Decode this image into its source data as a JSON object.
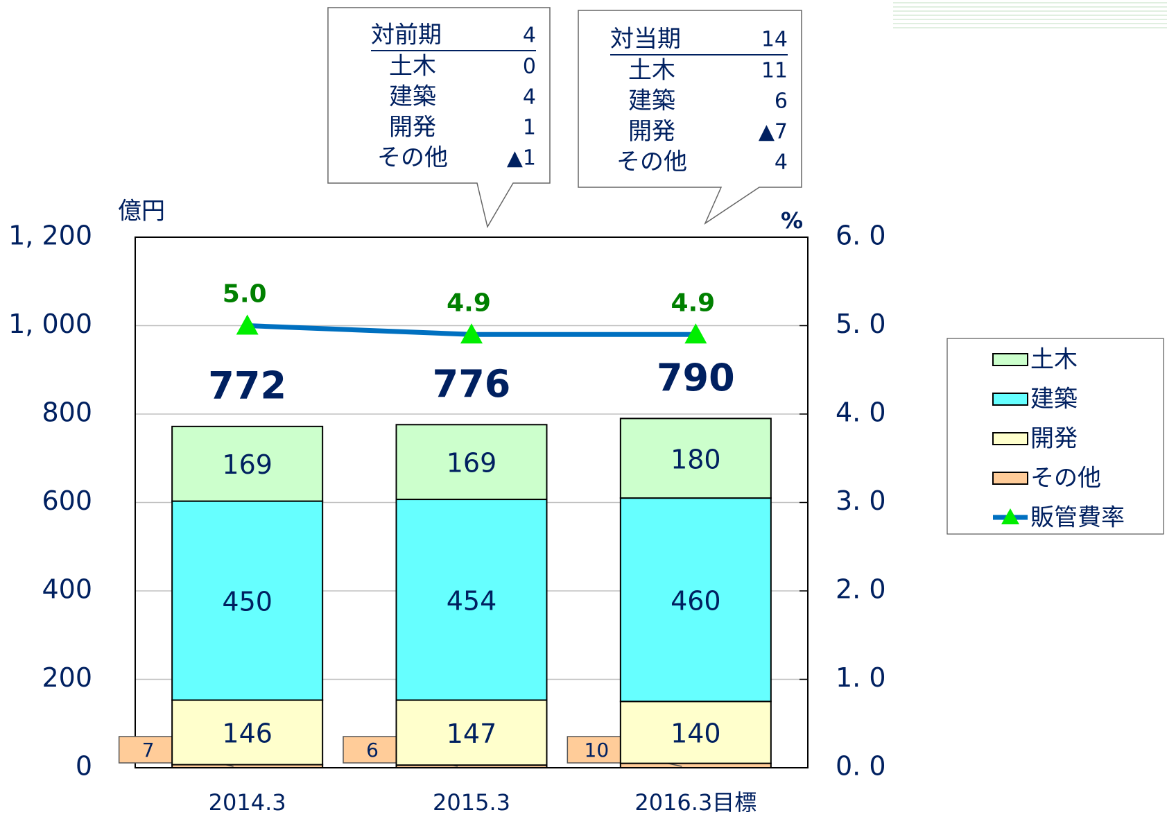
{
  "chart_data": {
    "type": "stacked_bar_line",
    "y_label": "億円",
    "y2_label": "%",
    "categories": [
      "2014.3",
      "2015.3",
      "2016.3目標"
    ],
    "series": [
      {
        "name": "その他",
        "color": "#ffcc99",
        "values": [
          7,
          6,
          10
        ]
      },
      {
        "name": "開発",
        "color": "#ffffcc",
        "values": [
          146,
          147,
          140
        ]
      },
      {
        "name": "建築",
        "color": "#66ffff",
        "values": [
          450,
          454,
          460
        ]
      },
      {
        "name": "土木",
        "color": "#ccffcc",
        "values": [
          169,
          169,
          180
        ]
      },
      {
        "name": "販管費率",
        "type": "line",
        "axis": "y2",
        "color": "#0070c0",
        "marker_color": "#00ee00",
        "values": [
          5.0,
          4.9,
          4.9
        ],
        "value_labels": [
          "5.0",
          "4.9",
          "4.9"
        ]
      }
    ],
    "totals": [
      772,
      776,
      790
    ],
    "ylim": [
      0,
      1200
    ],
    "yticks": [
      0,
      200,
      400,
      600,
      800,
      {
        "value": 1000,
        "label": "1, 000"
      },
      {
        "value": 1200,
        "label": "1, 200"
      }
    ],
    "y2lim": [
      0,
      6
    ],
    "y2ticks": [
      {
        "value": 0,
        "label": "0. 0"
      },
      {
        "value": 1,
        "label": "1. 0"
      },
      {
        "value": 2,
        "label": "2. 0"
      },
      {
        "value": 3,
        "label": "3. 0"
      },
      {
        "value": 4,
        "label": "4. 0"
      },
      {
        "value": 5,
        "label": "5. 0"
      },
      {
        "value": 6,
        "label": "6. 0"
      }
    ],
    "grid": true,
    "legend": "right",
    "annotations": [
      {
        "header": [
          "対前期",
          "4"
        ],
        "rows": [
          [
            "土木",
            "0"
          ],
          [
            "建築",
            "4"
          ],
          [
            "開発",
            "1"
          ],
          [
            "その他",
            "▲1"
          ]
        ]
      },
      {
        "header": [
          "対当期",
          "14"
        ],
        "rows": [
          [
            "土木",
            "11"
          ],
          [
            "建築",
            "6"
          ],
          [
            "開発",
            "▲7"
          ],
          [
            "その他",
            "4"
          ]
        ]
      }
    ]
  }
}
